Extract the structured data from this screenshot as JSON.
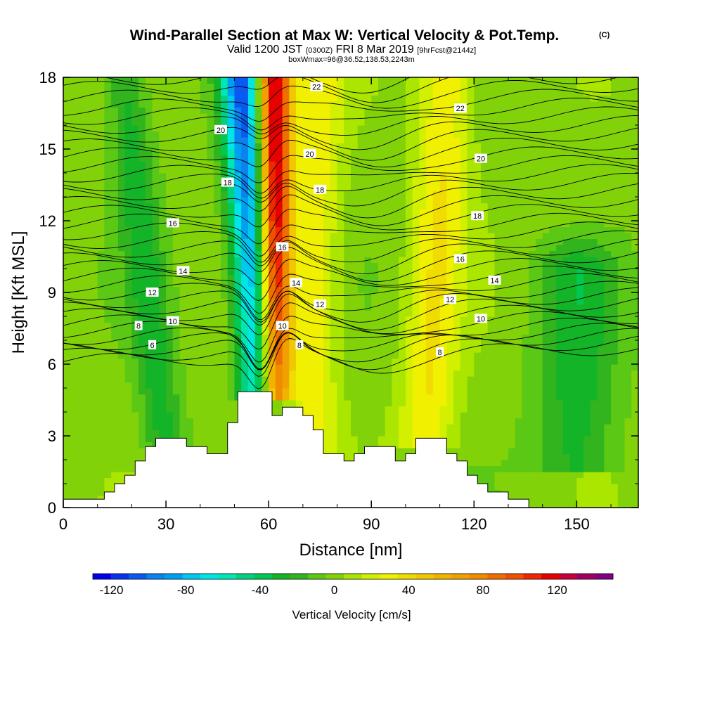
{
  "chart_data": {
    "type": "heatmap",
    "title": "Wind-Parallel Section at Max W: Vertical Velocity & Pot.Temp.",
    "title_mark": "(C)",
    "subtitle": {
      "valid": "Valid 1200 JST",
      "utc": "(0300Z)",
      "date": "FRI 8 Mar 2019",
      "forecast": "[9hrFcst@2144z]",
      "box": "boxWmax=96@36.52,138.53,2243m"
    },
    "xlabel": "Distance [nm]",
    "ylabel": "Height [Kft MSL]",
    "xlim": [
      0,
      168
    ],
    "ylim": [
      0,
      18
    ],
    "x_ticks": [
      0,
      30,
      60,
      90,
      120,
      150
    ],
    "y_ticks": [
      0,
      3,
      6,
      9,
      12,
      15,
      18
    ],
    "colorbar": {
      "label": "Vertical Velocity [cm/s]",
      "min": -130,
      "max": 150,
      "step": 10,
      "tick_values": [
        -120,
        -80,
        -40,
        0,
        40,
        80,
        120
      ],
      "tick_labels": [
        "-120",
        "-80",
        "-40",
        "0",
        "40",
        "80",
        "120"
      ],
      "colors": [
        "#0000f0",
        "#0a32f0",
        "#0a5af0",
        "#0a82f0",
        "#00a0f0",
        "#00c8f0",
        "#00e6e6",
        "#00e6b4",
        "#00d282",
        "#00c850",
        "#14b428",
        "#32b41e",
        "#5ac814",
        "#82d20a",
        "#aae600",
        "#d2f000",
        "#f0f000",
        "#f0dc00",
        "#f0c800",
        "#f0b400",
        "#f0a000",
        "#f08c00",
        "#f06e00",
        "#f05000",
        "#f02800",
        "#e60000",
        "#c8003c",
        "#a00064",
        "#820082"
      ]
    },
    "updrafts": [
      {
        "name": "main-updraft",
        "x_bottom": 61.5,
        "y_bottom": 5,
        "x_top": 61.5,
        "y_top": 18,
        "width": 5,
        "peak": 140
      },
      {
        "name": "main-downdraft",
        "x_bottom": 58,
        "y_bottom": 5,
        "x_top": 52,
        "y_top": 18,
        "width": 6,
        "peak": -110
      },
      {
        "name": "secondary-updraft",
        "x_bottom": 73,
        "y_bottom": 2,
        "x_top": 75,
        "y_top": 18,
        "width": 7,
        "peak": 30
      },
      {
        "name": "lee-updraft",
        "x_bottom": 106,
        "y_bottom": 3,
        "x_top": 112,
        "y_top": 18,
        "width": 8,
        "peak": 35
      },
      {
        "name": "downdraft-west",
        "x_bottom": 30,
        "y_bottom": 2,
        "x_top": 18,
        "y_top": 18,
        "width": 6,
        "peak": -30
      },
      {
        "name": "downdraft-east",
        "x_bottom": 150,
        "y_bottom": 2,
        "x_top": 150,
        "y_top": 10,
        "width": 12,
        "peak": -30
      }
    ],
    "terrain": [
      [
        0,
        0.35
      ],
      [
        12,
        0.35
      ],
      [
        12,
        0.65
      ],
      [
        15,
        0.65
      ],
      [
        15,
        1.0
      ],
      [
        18,
        1.0
      ],
      [
        18,
        1.35
      ],
      [
        21,
        1.35
      ],
      [
        21,
        1.95
      ],
      [
        24,
        1.95
      ],
      [
        24,
        2.55
      ],
      [
        27,
        2.55
      ],
      [
        27,
        2.9
      ],
      [
        36,
        2.9
      ],
      [
        36,
        2.55
      ],
      [
        42,
        2.55
      ],
      [
        42,
        2.25
      ],
      [
        48,
        2.25
      ],
      [
        48,
        3.55
      ],
      [
        51,
        3.55
      ],
      [
        51,
        4.85
      ],
      [
        61,
        4.85
      ],
      [
        61,
        3.85
      ],
      [
        64,
        3.85
      ],
      [
        64,
        4.2
      ],
      [
        70,
        4.2
      ],
      [
        70,
        3.85
      ],
      [
        73,
        3.85
      ],
      [
        73,
        3.25
      ],
      [
        76,
        3.25
      ],
      [
        76,
        2.25
      ],
      [
        82,
        2.25
      ],
      [
        82,
        1.95
      ],
      [
        85,
        1.95
      ],
      [
        85,
        2.25
      ],
      [
        88,
        2.25
      ],
      [
        88,
        2.55
      ],
      [
        97,
        2.55
      ],
      [
        97,
        1.95
      ],
      [
        100,
        1.95
      ],
      [
        100,
        2.25
      ],
      [
        103,
        2.25
      ],
      [
        103,
        2.9
      ],
      [
        112,
        2.9
      ],
      [
        112,
        2.25
      ],
      [
        115,
        2.25
      ],
      [
        115,
        1.95
      ],
      [
        118,
        1.95
      ],
      [
        118,
        1.35
      ],
      [
        121,
        1.35
      ],
      [
        121,
        1.0
      ],
      [
        124,
        1.0
      ],
      [
        124,
        0.65
      ],
      [
        130,
        0.65
      ],
      [
        130,
        0.35
      ],
      [
        136,
        0.35
      ],
      [
        136,
        0.0
      ],
      [
        168,
        0.0
      ]
    ],
    "theta_contour_levels": [
      6,
      8,
      10,
      12,
      14,
      16,
      18,
      20,
      22
    ],
    "contour_labels": [
      {
        "text": "22",
        "x": 74,
        "y": 17.6
      },
      {
        "text": "22",
        "x": 116,
        "y": 16.7
      },
      {
        "text": "20",
        "x": 46,
        "y": 15.8
      },
      {
        "text": "20",
        "x": 72,
        "y": 14.8
      },
      {
        "text": "20",
        "x": 122,
        "y": 14.6
      },
      {
        "text": "18",
        "x": 48,
        "y": 13.6
      },
      {
        "text": "18",
        "x": 75,
        "y": 13.3
      },
      {
        "text": "18",
        "x": 121,
        "y": 12.2
      },
      {
        "text": "16",
        "x": 32,
        "y": 11.9
      },
      {
        "text": "16",
        "x": 64,
        "y": 10.9
      },
      {
        "text": "16",
        "x": 116,
        "y": 10.4
      },
      {
        "text": "14",
        "x": 35,
        "y": 9.9
      },
      {
        "text": "14",
        "x": 68,
        "y": 9.4
      },
      {
        "text": "14",
        "x": 126,
        "y": 9.5
      },
      {
        "text": "12",
        "x": 26,
        "y": 9.0
      },
      {
        "text": "12",
        "x": 75,
        "y": 8.5
      },
      {
        "text": "12",
        "x": 113,
        "y": 8.7
      },
      {
        "text": "10",
        "x": 32,
        "y": 7.8
      },
      {
        "text": "10",
        "x": 64,
        "y": 7.6
      },
      {
        "text": "10",
        "x": 122,
        "y": 7.9
      },
      {
        "text": "8",
        "x": 22,
        "y": 7.6
      },
      {
        "text": "8",
        "x": 69,
        "y": 6.8
      },
      {
        "text": "8",
        "x": 110,
        "y": 6.5
      },
      {
        "text": "6",
        "x": 26,
        "y": 6.8
      }
    ]
  }
}
